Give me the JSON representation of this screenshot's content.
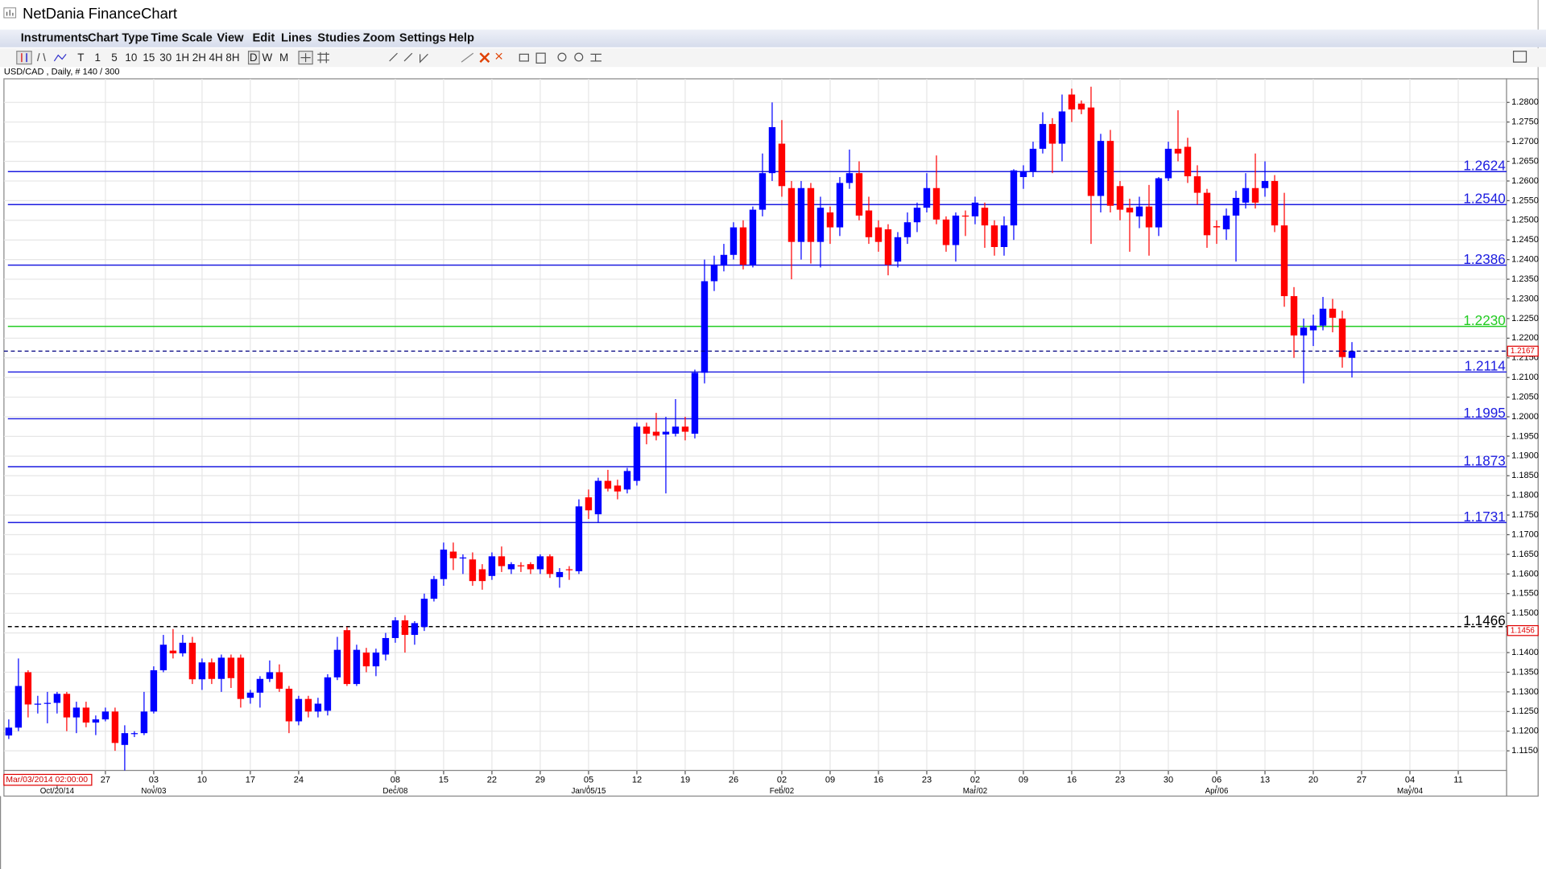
{
  "window": {
    "title": "NetDania FinanceChart"
  },
  "menu": [
    "Instruments",
    "Chart Type",
    "Time Scale",
    "View",
    "Edit",
    "Lines",
    "Studies",
    "Zoom",
    "Settings",
    "Help"
  ],
  "toolbar": {
    "timeframes": [
      "T",
      "1",
      "5",
      "10",
      "15",
      "30",
      "1H",
      "2H",
      "4H",
      "8H",
      "D",
      "W",
      "M"
    ],
    "selected": "D"
  },
  "chart_data": {
    "type": "candlestick",
    "instrument_label": "USD/CAD , Daily, # 140 / 300",
    "cursor_label": "Mar/03/2014 02:00:00",
    "up_color": "#0000ff",
    "down_color": "#ff0000",
    "grid": true,
    "xlim": [
      -0.5,
      155
    ],
    "ylim": [
      1.11,
      1.286
    ],
    "open": [
      1.1189,
      1.1209,
      1.135,
      1.1268,
      1.127,
      1.1272,
      1.1295,
      1.1235,
      1.126,
      1.1222,
      1.123,
      1.125,
      1.1165,
      1.1195,
      1.1195,
      1.125,
      1.1355,
      1.1405,
      1.1398,
      1.1425,
      1.1332,
      1.1375,
      1.1333,
      1.1387,
      1.1387,
      1.1285,
      1.1298,
      1.1333,
      1.135,
      1.1308,
      1.1225,
      1.1282,
      1.125,
      1.1252,
      1.1337,
      1.1457,
      1.132,
      1.14,
      1.1365,
      1.1395,
      1.1437,
      1.1482,
      1.1445,
      1.1465,
      1.1537,
      1.1587,
      1.1657,
      1.164,
      1.1637,
      1.1612,
      1.1595,
      1.1645,
      1.1612,
      1.1622,
      1.1625,
      1.1612,
      1.1645,
      1.1592,
      1.1612,
      1.1607,
      1.1795,
      1.1752,
      1.1837,
      1.1825,
      1.1815,
      1.1837,
      1.1975,
      1.1962,
      1.1955,
      1.1957,
      1.1975,
      1.1957,
      1.2112,
      1.2345,
      1.2385,
      1.2412,
      1.2482,
      1.2387,
      1.2527,
      1.262,
      1.2695,
      1.2582,
      1.2445,
      1.2582,
      1.2445,
      1.252,
      1.2482,
      1.2595,
      1.262,
      1.2525,
      1.2482,
      1.2477,
      1.2395,
      1.2457,
      1.2495,
      1.2532,
      1.2582,
      1.2502,
      1.2437,
      1.2512,
      1.251,
      1.2532,
      1.2487,
      1.2432,
      1.2487,
      1.261,
      1.2625,
      1.2682,
      1.2745,
      1.2695,
      1.282,
      1.2797,
      1.2787,
      1.2562,
      1.2702,
      1.2587,
      1.2532,
      1.251,
      1.2535,
      1.2482,
      1.2607,
      1.2682,
      1.2687,
      1.2612,
      1.257,
      1.2485,
      1.2477,
      1.2512,
      1.2545,
      1.2582,
      1.2582,
      1.26,
      1.2487,
      1.2307,
      1.2207,
      1.222,
      1.2232,
      1.2275,
      1.225,
      1.215
    ],
    "high": [
      1.123,
      1.1385,
      1.1355,
      1.129,
      1.13,
      1.13,
      1.13,
      1.1275,
      1.1275,
      1.124,
      1.126,
      1.126,
      1.1215,
      1.12,
      1.13,
      1.1365,
      1.1445,
      1.146,
      1.1445,
      1.144,
      1.1385,
      1.1385,
      1.1395,
      1.1395,
      1.1395,
      1.1305,
      1.134,
      1.138,
      1.137,
      1.1315,
      1.129,
      1.129,
      1.1285,
      1.1345,
      1.144,
      1.1465,
      1.142,
      1.1412,
      1.141,
      1.145,
      1.149,
      1.1495,
      1.148,
      1.155,
      1.1595,
      1.168,
      1.168,
      1.165,
      1.1655,
      1.1625,
      1.1655,
      1.167,
      1.163,
      1.163,
      1.163,
      1.165,
      1.165,
      1.1615,
      1.162,
      1.179,
      1.1815,
      1.1845,
      1.1865,
      1.184,
      1.187,
      1.1985,
      1.1985,
      1.201,
      1.2,
      1.2045,
      1.2,
      1.212,
      1.24,
      1.241,
      1.244,
      1.2495,
      1.25,
      1.2535,
      1.267,
      1.28,
      1.2755,
      1.26,
      1.26,
      1.2595,
      1.256,
      1.2535,
      1.261,
      1.268,
      1.265,
      1.256,
      1.25,
      1.249,
      1.247,
      1.252,
      1.2545,
      1.262,
      1.2665,
      1.251,
      1.252,
      1.2525,
      1.256,
      1.2545,
      1.25,
      1.251,
      1.263,
      1.264,
      1.27,
      1.2775,
      1.276,
      1.282,
      1.2835,
      1.2805,
      1.284,
      1.272,
      1.273,
      1.26,
      1.2555,
      1.256,
      1.259,
      1.261,
      1.27,
      1.278,
      1.271,
      1.264,
      1.258,
      1.25,
      1.253,
      1.2575,
      1.262,
      1.267,
      1.265,
      1.2615,
      1.257,
      1.233,
      1.225,
      1.226,
      1.2305,
      1.23,
      1.227,
      1.219
    ],
    "low": [
      1.118,
      1.12,
      1.1235,
      1.1245,
      1.122,
      1.1245,
      1.12,
      1.1195,
      1.121,
      1.119,
      1.1225,
      1.115,
      1.11,
      1.1185,
      1.119,
      1.1245,
      1.135,
      1.1385,
      1.139,
      1.132,
      1.1305,
      1.132,
      1.13,
      1.131,
      1.126,
      1.127,
      1.126,
      1.1325,
      1.13,
      1.1195,
      1.1215,
      1.1235,
      1.1235,
      1.124,
      1.133,
      1.1315,
      1.1315,
      1.135,
      1.134,
      1.138,
      1.1425,
      1.14,
      1.142,
      1.1455,
      1.153,
      1.157,
      1.161,
      1.16,
      1.157,
      1.156,
      1.1585,
      1.1605,
      1.16,
      1.1605,
      1.16,
      1.16,
      1.159,
      1.1565,
      1.1585,
      1.16,
      1.174,
      1.173,
      1.181,
      1.179,
      1.1805,
      1.1825,
      1.193,
      1.194,
      1.1805,
      1.195,
      1.194,
      1.1945,
      1.2085,
      1.232,
      1.237,
      1.24,
      1.2375,
      1.238,
      1.251,
      1.26,
      1.256,
      1.235,
      1.24,
      1.239,
      1.238,
      1.244,
      1.246,
      1.258,
      1.25,
      1.244,
      1.242,
      1.236,
      1.238,
      1.244,
      1.247,
      1.252,
      1.249,
      1.242,
      1.2395,
      1.246,
      1.249,
      1.243,
      1.241,
      1.241,
      1.245,
      1.258,
      1.261,
      1.267,
      1.262,
      1.265,
      1.275,
      1.277,
      1.244,
      1.252,
      1.252,
      1.25,
      1.242,
      1.248,
      1.241,
      1.246,
      1.26,
      1.265,
      1.2595,
      1.254,
      1.243,
      1.244,
      1.245,
      1.2395,
      1.253,
      1.253,
      1.256,
      1.247,
      1.228,
      1.215,
      1.2085,
      1.218,
      1.222,
      1.2215,
      1.2125,
      1.21
    ],
    "close": [
      1.1209,
      1.1315,
      1.1268,
      1.127,
      1.1272,
      1.1295,
      1.1235,
      1.126,
      1.1222,
      1.123,
      1.125,
      1.117,
      1.1195,
      1.1195,
      1.125,
      1.1355,
      1.142,
      1.1398,
      1.1425,
      1.1332,
      1.1375,
      1.1333,
      1.1387,
      1.1335,
      1.1282,
      1.1298,
      1.1333,
      1.135,
      1.1308,
      1.1225,
      1.1282,
      1.125,
      1.127,
      1.1337,
      1.1407,
      1.132,
      1.1407,
      1.1365,
      1.14,
      1.1437,
      1.1482,
      1.1445,
      1.1475,
      1.1537,
      1.1587,
      1.1662,
      1.164,
      1.1642,
      1.1582,
      1.1582,
      1.1645,
      1.162,
      1.1625,
      1.162,
      1.1612,
      1.1645,
      1.16,
      1.1605,
      1.161,
      1.1772,
      1.1762,
      1.1837,
      1.1817,
      1.181,
      1.1862,
      1.1975,
      1.1957,
      1.1952,
      1.1962,
      1.1975,
      1.1962,
      1.2112,
      1.2345,
      1.2387,
      1.2412,
      1.2482,
      1.2387,
      1.2527,
      1.262,
      1.2737,
      1.2587,
      1.2445,
      1.2582,
      1.2445,
      1.2532,
      1.2482,
      1.2595,
      1.262,
      1.2512,
      1.2457,
      1.2445,
      1.2387,
      1.2457,
      1.2495,
      1.2532,
      1.2582,
      1.2502,
      1.2437,
      1.2512,
      1.251,
      1.2545,
      1.2487,
      1.2432,
      1.2487,
      1.2627,
      1.2625,
      1.2682,
      1.2745,
      1.2695,
      1.2777,
      1.2782,
      1.2782,
      1.2562,
      1.2702,
      1.2537,
      1.2527,
      1.252,
      1.2535,
      1.2482,
      1.2607,
      1.2682,
      1.267,
      1.2612,
      1.257,
      1.2462,
      1.2482,
      1.2512,
      1.2557,
      1.2582,
      1.2545,
      1.26,
      1.2487,
      1.2307,
      1.2207,
      1.2227,
      1.2232,
      1.2275,
      1.2252,
      1.2152,
      1.2167
    ],
    "yticks": [
      {
        "value": 1.115,
        "label": "1.1150"
      },
      {
        "value": 1.12,
        "label": "1.1200"
      },
      {
        "value": 1.125,
        "label": "1.1250"
      },
      {
        "value": 1.13,
        "label": "1.1300"
      },
      {
        "value": 1.135,
        "label": "1.1350"
      },
      {
        "value": 1.14,
        "label": "1.1400"
      },
      {
        "value": 1.145,
        "label": "1.1450"
      },
      {
        "value": 1.15,
        "label": "1.1500"
      },
      {
        "value": 1.155,
        "label": "1.1550"
      },
      {
        "value": 1.16,
        "label": "1.1600"
      },
      {
        "value": 1.165,
        "label": "1.1650"
      },
      {
        "value": 1.17,
        "label": "1.1700"
      },
      {
        "value": 1.175,
        "label": "1.1750"
      },
      {
        "value": 1.18,
        "label": "1.1800"
      },
      {
        "value": 1.185,
        "label": "1.1850"
      },
      {
        "value": 1.19,
        "label": "1.1900"
      },
      {
        "value": 1.195,
        "label": "1.1950"
      },
      {
        "value": 1.2,
        "label": "1.2000"
      },
      {
        "value": 1.205,
        "label": "1.2050"
      },
      {
        "value": 1.21,
        "label": "1.2100"
      },
      {
        "value": 1.215,
        "label": "1.2150"
      },
      {
        "value": 1.22,
        "label": "1.2200"
      },
      {
        "value": 1.225,
        "label": "1.2250"
      },
      {
        "value": 1.23,
        "label": "1.2300"
      },
      {
        "value": 1.235,
        "label": "1.2350"
      },
      {
        "value": 1.24,
        "label": "1.2400"
      },
      {
        "value": 1.245,
        "label": "1.2450"
      },
      {
        "value": 1.25,
        "label": "1.2500"
      },
      {
        "value": 1.255,
        "label": "1.2550"
      },
      {
        "value": 1.26,
        "label": "1.2600"
      },
      {
        "value": 1.265,
        "label": "1.2650"
      },
      {
        "value": 1.27,
        "label": "1.2700"
      },
      {
        "value": 1.275,
        "label": "1.2750"
      },
      {
        "value": 1.28,
        "label": "1.2800"
      }
    ],
    "xticks": [
      {
        "value": 10,
        "label": "27"
      },
      {
        "value": 15,
        "label": "03"
      },
      {
        "value": 20,
        "label": "10"
      },
      {
        "value": 25,
        "label": "17"
      },
      {
        "value": 30,
        "label": "24"
      },
      {
        "value": 40,
        "label": "08"
      },
      {
        "value": 45,
        "label": "15"
      },
      {
        "value": 50,
        "label": "22"
      },
      {
        "value": 55,
        "label": "29"
      },
      {
        "value": 60,
        "label": "05"
      },
      {
        "value": 65,
        "label": "12"
      },
      {
        "value": 70,
        "label": "19"
      },
      {
        "value": 75,
        "label": "26"
      },
      {
        "value": 80,
        "label": "02"
      },
      {
        "value": 85,
        "label": "09"
      },
      {
        "value": 90,
        "label": "16"
      },
      {
        "value": 95,
        "label": "23"
      },
      {
        "value": 100,
        "label": "02"
      },
      {
        "value": 105,
        "label": "09"
      },
      {
        "value": 110,
        "label": "16"
      },
      {
        "value": 115,
        "label": "23"
      },
      {
        "value": 120,
        "label": "30"
      },
      {
        "value": 125,
        "label": "06"
      },
      {
        "value": 130,
        "label": "13"
      },
      {
        "value": 135,
        "label": "20"
      },
      {
        "value": 140,
        "label": "27"
      },
      {
        "value": 145,
        "label": "04"
      },
      {
        "value": 150,
        "label": "11"
      }
    ],
    "xticks_months": [
      {
        "value": 5,
        "label": "Oct/20/14"
      },
      {
        "value": 15,
        "label": "Nov/03"
      },
      {
        "value": 40,
        "label": "Dec/08"
      },
      {
        "value": 60,
        "label": "Jan/05/15"
      },
      {
        "value": 80,
        "label": "Feb/02"
      },
      {
        "value": 100,
        "label": "Mar/02"
      },
      {
        "value": 125,
        "label": "Apr/06"
      },
      {
        "value": 145,
        "label": "May/04"
      }
    ],
    "levels": [
      {
        "value": 1.2624,
        "label": "1.2624",
        "color": "#1c1ce0",
        "dashed": false
      },
      {
        "value": 1.254,
        "label": "1.2540",
        "color": "#1c1ce0",
        "dashed": false
      },
      {
        "value": 1.2386,
        "label": "1.2386",
        "color": "#1c1ce0",
        "dashed": false
      },
      {
        "value": 1.223,
        "label": "1.2230",
        "color": "#22cc22",
        "dashed": false
      },
      {
        "value": 1.2114,
        "label": "1.2114",
        "color": "#1c1ce0",
        "dashed": false
      },
      {
        "value": 1.1995,
        "label": "1.1995",
        "color": "#1c1ce0",
        "dashed": false
      },
      {
        "value": 1.1873,
        "label": "1.1873",
        "color": "#1c1ce0",
        "dashed": false
      },
      {
        "value": 1.1731,
        "label": "1.1731",
        "color": "#1c1ce0",
        "dashed": false
      },
      {
        "value": 1.1466,
        "label": "1.1466",
        "color": "#000000",
        "dashed": true
      }
    ],
    "price_markers": [
      {
        "value": 1.2167,
        "color": "#e00000",
        "line": true
      },
      {
        "value": 1.1456,
        "color": "#e00000",
        "line": false
      }
    ]
  }
}
